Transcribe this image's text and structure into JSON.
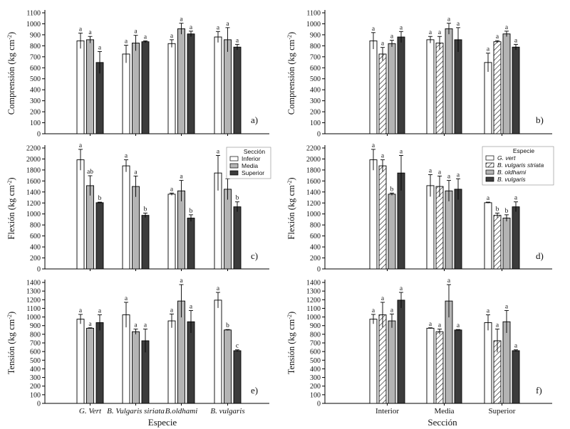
{
  "figure": {
    "left_xlabel": "Especie",
    "right_xlabel": "Sección",
    "left_categories": [
      "G. Vert",
      "B. Vulgaris siriata",
      "B.oldhami",
      "B. vulgaris"
    ],
    "right_categories": [
      "Interior",
      "Media",
      "Superior"
    ]
  },
  "colors": {
    "inferior": "#ffffff",
    "media": "#b4b4b4",
    "superior": "#3c3c3c",
    "g_vert": "#ffffff",
    "b_vulgaris_striata": "hatch",
    "b_oldhami": "#b4b4b4",
    "b_vulgaris": "#3c3c3c"
  },
  "legends": {
    "seccion": {
      "title": "Sección",
      "items": [
        "Inferior",
        "Media",
        "Superior"
      ]
    },
    "especie": {
      "title": "Especie",
      "items": [
        "G. vert",
        "B. vulgaris striata",
        "B. oldhami",
        "B. vulgaris"
      ]
    }
  },
  "chart_data": [
    {
      "id": "a",
      "type": "bar",
      "panel_label": "a)",
      "ylabel": "Comprensión (kg cm⁻²)",
      "ylim": [
        0,
        1100
      ],
      "yticks": [
        0,
        100,
        200,
        300,
        400,
        500,
        600,
        700,
        800,
        900,
        1000,
        1100
      ],
      "categories": [
        "G. Vert",
        "B. Vulgaris siriata",
        "B.oldhami",
        "B. vulgaris"
      ],
      "series": [
        {
          "name": "Inferior",
          "values": [
            845,
            725,
            820,
            880
          ],
          "errors": [
            70,
            80,
            35,
            50
          ],
          "letters": [
            "a",
            "a",
            "a",
            "a"
          ]
        },
        {
          "name": "Media",
          "values": [
            855,
            825,
            955,
            855
          ],
          "errors": [
            30,
            70,
            50,
            110
          ],
          "letters": [
            "a",
            "a",
            "a",
            "a"
          ]
        },
        {
          "name": "Superior",
          "values": [
            648,
            837,
            908,
            788
          ],
          "errors": [
            100,
            8,
            25,
            25
          ],
          "letters": [
            "a",
            "a",
            "a",
            "a"
          ]
        }
      ]
    },
    {
      "id": "b",
      "type": "bar",
      "panel_label": "b)",
      "ylabel": "Comprensión (kg cm⁻²)",
      "ylim": [
        0,
        1100
      ],
      "yticks": [
        0,
        100,
        200,
        300,
        400,
        500,
        600,
        700,
        800,
        900,
        1000,
        1100
      ],
      "categories": [
        "Interior",
        "Media",
        "Superior"
      ],
      "series": [
        {
          "name": "G. vert",
          "values": [
            845,
            855,
            648
          ],
          "errors": [
            75,
            30,
            85
          ],
          "letters": [
            "a",
            "a",
            "a"
          ]
        },
        {
          "name": "B. vulgaris striata",
          "values": [
            725,
            825,
            837
          ],
          "errors": [
            60,
            60,
            10
          ],
          "letters": [
            "a",
            "a",
            "a"
          ]
        },
        {
          "name": "B. oldhami",
          "values": [
            820,
            955,
            908
          ],
          "errors": [
            30,
            50,
            25
          ],
          "letters": [
            "a",
            "a",
            "a"
          ]
        },
        {
          "name": "B. vulgaris",
          "values": [
            880,
            855,
            788
          ],
          "errors": [
            50,
            110,
            25
          ],
          "letters": [
            "a",
            "a",
            "a"
          ]
        }
      ]
    },
    {
      "id": "c",
      "type": "bar",
      "panel_label": "c)",
      "ylabel": "Flexión (kg cm⁻²)",
      "ylim": [
        0,
        2200
      ],
      "yticks": [
        0,
        200,
        400,
        600,
        800,
        1000,
        1200,
        1400,
        1600,
        1800,
        2000,
        2200
      ],
      "categories": [
        "G. Vert",
        "B. Vulgaris siriata",
        "B.oldhami",
        "B. vulgaris"
      ],
      "series": [
        {
          "name": "Inferior",
          "values": [
            1985,
            1875,
            1360,
            1745
          ],
          "errors": [
            190,
            110,
            20,
            320
          ],
          "letters": [
            "a",
            "a",
            "a",
            "a"
          ]
        },
        {
          "name": "Media",
          "values": [
            1515,
            1500,
            1420,
            1450
          ],
          "errors": [
            180,
            190,
            190,
            190
          ],
          "letters": [
            "ab",
            "a",
            "a",
            "a"
          ]
        },
        {
          "name": "Superior",
          "values": [
            1205,
            975,
            925,
            1130
          ],
          "errors": [
            10,
            40,
            60,
            90
          ],
          "letters": [
            "b",
            "b",
            "b",
            "b"
          ]
        }
      ]
    },
    {
      "id": "d",
      "type": "bar",
      "panel_label": "d)",
      "ylabel": "Flexión (kg cm⁻²)",
      "ylim": [
        0,
        2200
      ],
      "yticks": [
        0,
        200,
        400,
        600,
        800,
        1000,
        1200,
        1400,
        1600,
        1800,
        2000,
        2200
      ],
      "categories": [
        "Interior",
        "Media",
        "Superior"
      ],
      "series": [
        {
          "name": "G. vert",
          "values": [
            1985,
            1515,
            1205
          ],
          "errors": [
            190,
            200,
            10
          ],
          "letters": [
            "a",
            "a",
            "a"
          ]
        },
        {
          "name": "B. vulgaris striata",
          "values": [
            1875,
            1500,
            975
          ],
          "errors": [
            110,
            190,
            40
          ],
          "letters": [
            "a",
            "a",
            "b"
          ]
        },
        {
          "name": "B. oldhami",
          "values": [
            1360,
            1420,
            925
          ],
          "errors": [
            20,
            190,
            60
          ],
          "letters": [
            "b",
            "a",
            "b"
          ]
        },
        {
          "name": "B. vulgaris",
          "values": [
            1745,
            1450,
            1130
          ],
          "errors": [
            320,
            190,
            90
          ],
          "letters": [
            "a",
            "a",
            "a"
          ]
        }
      ]
    },
    {
      "id": "e",
      "type": "bar",
      "panel_label": "e)",
      "ylabel": "Tensión (kg cm⁻²)",
      "ylim": [
        0,
        1400
      ],
      "yticks": [
        0,
        100,
        200,
        300,
        400,
        500,
        600,
        700,
        800,
        900,
        1000,
        1100,
        1200,
        1300,
        1400
      ],
      "categories": [
        "G. Vert",
        "B. Vulgaris siriata",
        "B.oldhami",
        "B. vulgaris"
      ],
      "series": [
        {
          "name": "Inferior",
          "values": [
            975,
            1025,
            955,
            1195
          ],
          "errors": [
            55,
            145,
            80,
            90
          ],
          "letters": [
            "a",
            "a",
            "a",
            "a"
          ]
        },
        {
          "name": "Media",
          "values": [
            870,
            830,
            1185,
            850
          ],
          "errors": [
            5,
            30,
            190,
            5
          ],
          "letters": [
            "a",
            "a",
            "a",
            "b"
          ]
        },
        {
          "name": "Superior",
          "values": [
            935,
            725,
            945,
            610
          ],
          "errors": [
            90,
            135,
            130,
            10
          ],
          "letters": [
            "a",
            "a",
            "a",
            "c"
          ]
        }
      ]
    },
    {
      "id": "f",
      "type": "bar",
      "panel_label": "f)",
      "ylabel": "Tensión (kg cm⁻²)",
      "ylim": [
        0,
        1400
      ],
      "yticks": [
        0,
        100,
        200,
        300,
        400,
        500,
        600,
        700,
        800,
        900,
        1000,
        1100,
        1200,
        1300,
        1400
      ],
      "categories": [
        "Interior",
        "Media",
        "Superior"
      ],
      "series": [
        {
          "name": "G. vert",
          "values": [
            975,
            870,
            935
          ],
          "errors": [
            55,
            5,
            90
          ],
          "letters": [
            "a",
            "a",
            "a"
          ]
        },
        {
          "name": "B. vulgaris striata",
          "values": [
            1025,
            830,
            725
          ],
          "errors": [
            145,
            30,
            135
          ],
          "letters": [
            "a",
            "a",
            "a"
          ]
        },
        {
          "name": "B. oldhami",
          "values": [
            955,
            1185,
            945
          ],
          "errors": [
            80,
            190,
            130
          ],
          "letters": [
            "a",
            "a",
            "a"
          ]
        },
        {
          "name": "B. vulgaris",
          "values": [
            1195,
            850,
            610
          ],
          "errors": [
            90,
            5,
            10
          ],
          "letters": [
            "a",
            "a",
            "a"
          ]
        }
      ]
    }
  ]
}
